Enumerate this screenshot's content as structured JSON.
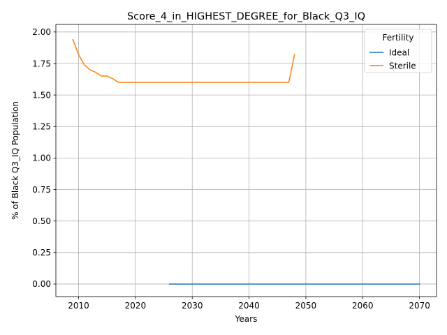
{
  "chart_data": {
    "type": "line",
    "title": "Score_4_in_HIGHEST_DEGREE_for_Black_Q3_IQ",
    "xlabel": "Years",
    "ylabel": "% of Black Q3_IQ Population",
    "xlim": [
      2006,
      2073
    ],
    "ylim": [
      -0.1,
      2.06
    ],
    "xticks": [
      2010,
      2020,
      2030,
      2040,
      2050,
      2060,
      2070
    ],
    "yticks": [
      0.0,
      0.25,
      0.5,
      0.75,
      1.0,
      1.25,
      1.5,
      1.75,
      2.0
    ],
    "ytick_labels": [
      "0.00",
      "0.25",
      "0.50",
      "0.75",
      "1.00",
      "1.25",
      "1.50",
      "1.75",
      "2.00"
    ],
    "grid": true,
    "legend": {
      "title": "Fertility",
      "placement": "top-right"
    },
    "series": [
      {
        "name": "Ideal",
        "color": "#1f77b4",
        "x": [
          2026,
          2070
        ],
        "y": [
          0.0,
          0.0
        ]
      },
      {
        "name": "Sterile",
        "color": "#ff7f0e",
        "x": [
          2009,
          2010,
          2011,
          2012,
          2013,
          2014,
          2015,
          2016,
          2017,
          2018,
          2019,
          2020,
          2025,
          2030,
          2035,
          2040,
          2045,
          2047,
          2048
        ],
        "y": [
          1.94,
          1.82,
          1.74,
          1.7,
          1.68,
          1.65,
          1.65,
          1.63,
          1.6,
          1.6,
          1.6,
          1.6,
          1.6,
          1.6,
          1.6,
          1.6,
          1.6,
          1.6,
          1.82
        ]
      }
    ]
  }
}
